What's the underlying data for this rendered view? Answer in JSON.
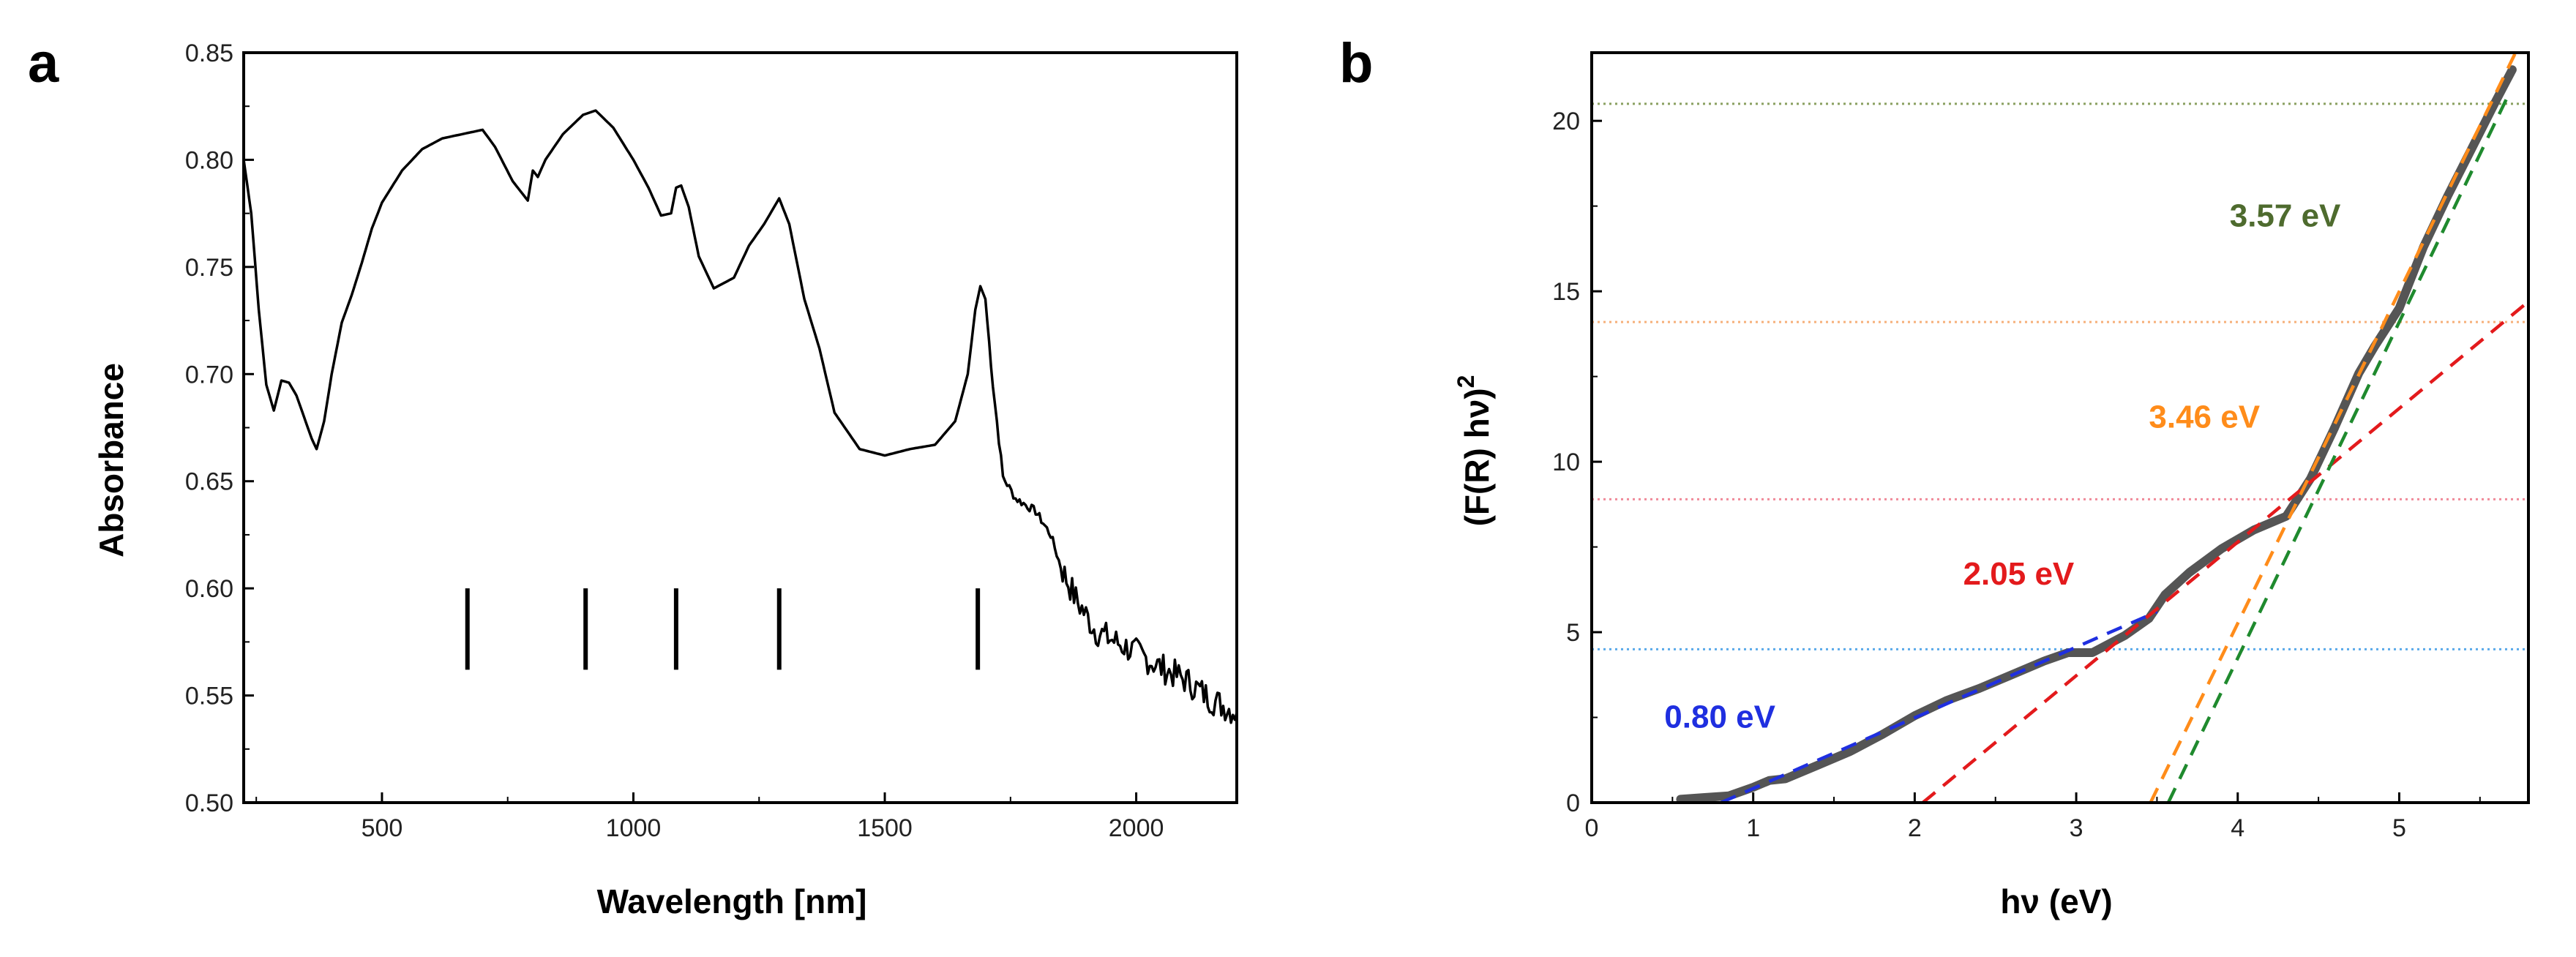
{
  "chart_data": [
    {
      "panel": "a",
      "type": "line",
      "xlabel": "Wavelength [nm]",
      "ylabel": "Absorbance",
      "xlim": [
        225,
        2200
      ],
      "ylim": [
        0.5,
        0.85
      ],
      "x_ticks": [
        500,
        1000,
        1500,
        2000
      ],
      "y_ticks": [
        0.5,
        0.55,
        0.6,
        0.65,
        0.7,
        0.75,
        0.8,
        0.85
      ],
      "x_tick_labels": [
        "500",
        "1000",
        "1500",
        "2000"
      ],
      "y_tick_labels": [
        "0.50",
        "0.55",
        "0.60",
        "0.65",
        "0.70",
        "0.75",
        "0.80",
        "0.85"
      ],
      "series": [
        {
          "name": "Absorbance",
          "color": "#000000",
          "noise_after_nm": 1850,
          "x": [
            225,
            240,
            255,
            270,
            285,
            300,
            315,
            330,
            345,
            360,
            370,
            385,
            400,
            420,
            440,
            460,
            480,
            500,
            540,
            580,
            620,
            660,
            700,
            725,
            760,
            790,
            800,
            810,
            825,
            860,
            900,
            925,
            960,
            1000,
            1030,
            1055,
            1075,
            1085,
            1095,
            1110,
            1130,
            1160,
            1200,
            1230,
            1260,
            1290,
            1310,
            1340,
            1370,
            1400,
            1450,
            1500,
            1550,
            1600,
            1640,
            1665,
            1680,
            1690,
            1700,
            1715,
            1735,
            1760,
            1800,
            1830,
            1850,
            1880,
            1920,
            1960,
            2000,
            2050,
            2100,
            2150,
            2200
          ],
          "y": [
            0.8,
            0.775,
            0.73,
            0.695,
            0.683,
            0.697,
            0.696,
            0.69,
            0.68,
            0.67,
            0.665,
            0.678,
            0.7,
            0.724,
            0.737,
            0.752,
            0.768,
            0.78,
            0.795,
            0.805,
            0.81,
            0.812,
            0.814,
            0.806,
            0.79,
            0.781,
            0.795,
            0.792,
            0.8,
            0.812,
            0.821,
            0.823,
            0.815,
            0.8,
            0.787,
            0.774,
            0.775,
            0.787,
            0.788,
            0.778,
            0.755,
            0.74,
            0.745,
            0.76,
            0.77,
            0.782,
            0.77,
            0.735,
            0.712,
            0.682,
            0.665,
            0.662,
            0.665,
            0.667,
            0.678,
            0.7,
            0.73,
            0.741,
            0.735,
            0.695,
            0.652,
            0.642,
            0.636,
            0.625,
            0.61,
            0.595,
            0.58,
            0.575,
            0.57,
            0.563,
            0.557,
            0.548,
            0.542
          ]
        }
      ],
      "marker_positions_nm": [
        670,
        905,
        1085,
        1290,
        1685
      ]
    },
    {
      "panel": "b",
      "type": "line",
      "xlabel": "hν (eV)",
      "ylabel": "(F(R) hν)",
      "ylabel_superscript": "2",
      "xlim": [
        0,
        5.8
      ],
      "ylim": [
        0,
        22
      ],
      "x_ticks": [
        0,
        1,
        2,
        3,
        4,
        5
      ],
      "y_ticks": [
        0,
        5,
        10,
        15,
        20
      ],
      "x_tick_labels": [
        "0",
        "1",
        "2",
        "3",
        "4",
        "5"
      ],
      "y_tick_labels": [
        "0",
        "5",
        "10",
        "15",
        "20"
      ],
      "series": [
        {
          "name": "(F(R) hν)^2",
          "color": "#555555",
          "x": [
            0.55,
            0.7,
            0.85,
            1.0,
            1.1,
            1.2,
            1.4,
            1.6,
            1.8,
            2.0,
            2.2,
            2.4,
            2.6,
            2.8,
            2.95,
            3.1,
            3.3,
            3.45,
            3.55,
            3.7,
            3.9,
            4.1,
            4.3,
            4.45,
            4.6,
            4.75,
            4.85,
            5.0,
            5.15,
            5.3,
            5.45,
            5.6,
            5.7
          ],
          "y": [
            0.1,
            0.15,
            0.2,
            0.45,
            0.65,
            0.7,
            1.1,
            1.5,
            2.0,
            2.55,
            3.0,
            3.35,
            3.75,
            4.15,
            4.4,
            4.4,
            4.9,
            5.4,
            6.1,
            6.75,
            7.45,
            8.0,
            8.4,
            9.5,
            11.0,
            12.6,
            13.4,
            14.5,
            16.3,
            17.8,
            19.2,
            20.6,
            21.5
          ]
        }
      ],
      "tangent_lines": [
        {
          "label": "0.80 eV",
          "color": "#1f2fe0",
          "x": [
            0.8,
            3.5
          ],
          "y": [
            0,
            5.6
          ]
        },
        {
          "label": "2.05 eV",
          "color": "#e31a1c",
          "x": [
            2.05,
            5.8
          ],
          "y": [
            0,
            14.7
          ]
        },
        {
          "label": "3.46 eV",
          "color": "#ff8c1a",
          "x": [
            3.46,
            5.72
          ],
          "y": [
            0,
            22
          ]
        },
        {
          "label": "3.57 eV",
          "color": "#1f8a2e",
          "x": [
            3.57,
            5.68
          ],
          "y": [
            0,
            20.8
          ]
        }
      ],
      "reference_lines": [
        {
          "y": 4.5,
          "color": "#5aa9ea"
        },
        {
          "y": 8.9,
          "color": "#f08a9a"
        },
        {
          "y": 14.1,
          "color": "#f6b07a"
        },
        {
          "y": 20.5,
          "color": "#8aa060"
        }
      ],
      "annotations": [
        {
          "text": "0.80 eV",
          "color": "#1f2fe0",
          "x": 0.45,
          "y": 2.2
        },
        {
          "text": "2.05 eV",
          "color": "#e31a1c",
          "x": 2.3,
          "y": 6.4
        },
        {
          "text": "3.46 eV",
          "color": "#ff8c1a",
          "x": 3.45,
          "y": 11.0
        },
        {
          "text": "3.57 eV",
          "color": "#4e6b2e",
          "x": 3.95,
          "y": 16.9
        }
      ]
    }
  ]
}
